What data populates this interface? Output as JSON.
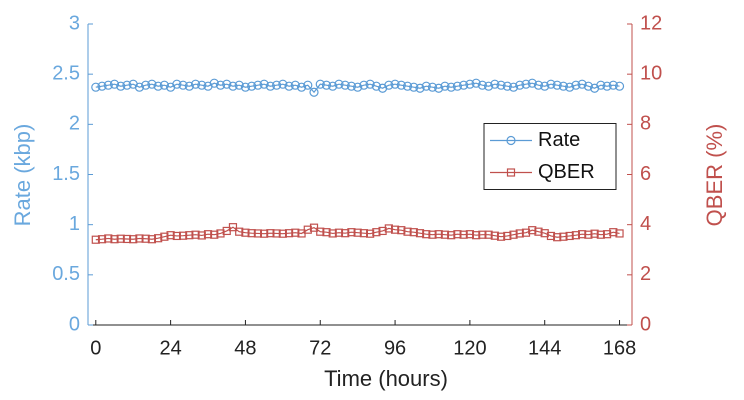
{
  "chart_data": {
    "type": "line",
    "xlabel": "Time (hours)",
    "ylabel": "Rate (kbp)",
    "y2label": "QBER (%)",
    "x": [
      0,
      2,
      4,
      6,
      8,
      10,
      12,
      14,
      16,
      18,
      20,
      22,
      24,
      26,
      28,
      30,
      32,
      34,
      36,
      38,
      40,
      42,
      44,
      46,
      48,
      50,
      52,
      54,
      56,
      58,
      60,
      62,
      64,
      66,
      68,
      70,
      72,
      74,
      76,
      78,
      80,
      82,
      84,
      86,
      88,
      90,
      92,
      94,
      96,
      98,
      100,
      102,
      104,
      106,
      108,
      110,
      112,
      114,
      116,
      118,
      120,
      122,
      124,
      126,
      128,
      130,
      132,
      134,
      136,
      138,
      140,
      142,
      144,
      146,
      148,
      150,
      152,
      154,
      156,
      158,
      160,
      162,
      164,
      166,
      168
    ],
    "series": [
      {
        "name": "Rate",
        "color": "#5b9bd5",
        "marker": "circle",
        "axis": "y",
        "values": [
          2.37,
          2.38,
          2.39,
          2.4,
          2.38,
          2.39,
          2.4,
          2.37,
          2.39,
          2.4,
          2.38,
          2.39,
          2.37,
          2.4,
          2.39,
          2.38,
          2.4,
          2.39,
          2.38,
          2.41,
          2.39,
          2.4,
          2.38,
          2.39,
          2.37,
          2.38,
          2.39,
          2.4,
          2.38,
          2.39,
          2.4,
          2.38,
          2.39,
          2.37,
          2.39,
          2.32,
          2.4,
          2.39,
          2.38,
          2.4,
          2.39,
          2.38,
          2.37,
          2.39,
          2.4,
          2.38,
          2.36,
          2.39,
          2.4,
          2.39,
          2.38,
          2.37,
          2.36,
          2.38,
          2.37,
          2.36,
          2.38,
          2.37,
          2.38,
          2.39,
          2.4,
          2.41,
          2.39,
          2.38,
          2.4,
          2.39,
          2.38,
          2.37,
          2.39,
          2.4,
          2.41,
          2.39,
          2.38,
          2.4,
          2.39,
          2.38,
          2.37,
          2.39,
          2.4,
          2.38,
          2.36,
          2.39,
          2.38,
          2.39,
          2.38
        ]
      },
      {
        "name": "QBER",
        "color": "#c0504d",
        "marker": "square",
        "axis": "y2",
        "values": [
          3.4,
          3.42,
          3.45,
          3.42,
          3.44,
          3.43,
          3.42,
          3.45,
          3.44,
          3.42,
          3.46,
          3.52,
          3.58,
          3.55,
          3.56,
          3.58,
          3.6,
          3.57,
          3.62,
          3.6,
          3.65,
          3.75,
          3.9,
          3.72,
          3.68,
          3.66,
          3.65,
          3.64,
          3.66,
          3.65,
          3.64,
          3.66,
          3.68,
          3.65,
          3.8,
          3.88,
          3.72,
          3.7,
          3.65,
          3.68,
          3.66,
          3.7,
          3.68,
          3.66,
          3.64,
          3.7,
          3.75,
          3.85,
          3.8,
          3.78,
          3.72,
          3.7,
          3.66,
          3.62,
          3.6,
          3.62,
          3.6,
          3.58,
          3.62,
          3.6,
          3.62,
          3.58,
          3.6,
          3.6,
          3.56,
          3.52,
          3.55,
          3.6,
          3.65,
          3.68,
          3.78,
          3.72,
          3.66,
          3.55,
          3.5,
          3.52,
          3.55,
          3.58,
          3.62,
          3.6,
          3.64,
          3.6,
          3.62,
          3.7,
          3.65
        ]
      }
    ],
    "xlim": [
      -2.5,
      172
    ],
    "xticks": [
      0,
      24,
      48,
      72,
      96,
      120,
      144,
      168
    ],
    "ylim": [
      0,
      3
    ],
    "yticks": [
      0,
      0.5,
      1,
      1.5,
      2,
      2.5,
      3
    ],
    "y2lim": [
      0,
      12
    ],
    "y2ticks": [
      0,
      2,
      4,
      6,
      8,
      10,
      12
    ],
    "legend": "right"
  }
}
